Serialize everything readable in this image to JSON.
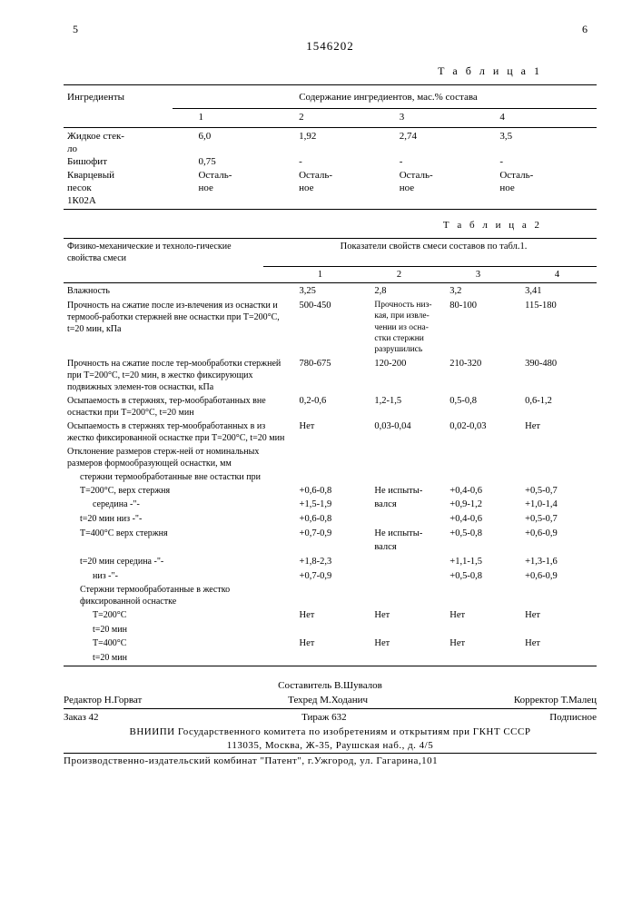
{
  "page": {
    "left_num": "5",
    "right_num": "6",
    "doc_number": "1546202"
  },
  "t1": {
    "title": "Т а б л и ц а 1",
    "head_left": "Ингредиенты",
    "head_right": "Содержание ингредиентов, мас.% состава",
    "cols": [
      "1",
      "2",
      "3",
      "4"
    ],
    "rows": [
      {
        "label_a": "Жидкое стек-",
        "label_b": "ло",
        "v": [
          "6,0",
          "1,92",
          "2,74",
          "3,5"
        ]
      },
      {
        "label_a": "Бишофит",
        "label_b": "",
        "v": [
          "0,75",
          "-",
          "-",
          "-"
        ]
      },
      {
        "label_a": "Кварцевый",
        "label_b": "песок",
        "v": [
          "Осталь-",
          "Осталь-",
          "Осталь-",
          "Осталь-"
        ],
        "v2": [
          "ное",
          "ное",
          "ное",
          "ное"
        ]
      },
      {
        "label_a": "1К02А",
        "label_b": "",
        "v": [
          "",
          "",
          "",
          ""
        ]
      }
    ]
  },
  "t2": {
    "title": "Т а б л и ц а 2",
    "head_left": "Физико-механические и техноло-гические свойства смеси",
    "head_right": "Показатели свойств смеси составов по табл.1.",
    "cols": [
      "1",
      "2",
      "3",
      "4"
    ],
    "rows": [
      {
        "label": "Влажность",
        "v": [
          "3,25",
          "2,8",
          "3,2",
          "3,41"
        ]
      },
      {
        "label": "Прочность на сжатие после из-влечения из оснастки и термооб-работки стержней вне оснастки при Т=200°С, t=20 мин, кПа",
        "v": [
          "500-450",
          "Прочность низ-кая, при извле-чении из осна-стки стержни разрушились",
          "80-100",
          "115-180"
        ],
        "note": true
      },
      {
        "label": "Прочность на сжатие после тер-мообработки стержней при Т=200°С, t=20 мин, в жестко фиксирующих подвижных элемен-тов оснастки, кПа",
        "v": [
          "780-675",
          "120-200",
          "210-320",
          "390-480"
        ]
      },
      {
        "label": "Осыпаемость в стержнях, тер-мообработанных вне оснастки при Т=200°С, t=20 мин",
        "v": [
          "0,2-0,6",
          "1,2-1,5",
          "0,5-0,8",
          "0,6-1,2"
        ]
      },
      {
        "label": "Осыпаемость в стержнях тер-мообработанных в из жестко фиксированной оснастке при Т=200°С, t=20 мин",
        "v": [
          "Нет",
          "0,03-0,04",
          "0,02-0,03",
          "Нет"
        ]
      },
      {
        "label": "Отклонение размеров стерж-ней от номинальных размеров формообразующей оснастки, мм",
        "v": [
          "",
          "",
          "",
          ""
        ]
      },
      {
        "label": "стержни термообработанные вне остастки при",
        "indent": 1,
        "v": [
          "",
          "",
          "",
          ""
        ]
      },
      {
        "label": "Т=200°С, верх стержня",
        "indent": 1,
        "v": [
          "+0,6-0,8",
          "Не испыты-",
          "+0,4-0,6",
          "+0,5-0,7"
        ]
      },
      {
        "label": "середина -\"-",
        "indent": 2,
        "v": [
          "+1,5-1,9",
          "вался",
          "+0,9-1,2",
          "+1,0-1,4"
        ]
      },
      {
        "label": "t=20 мин   низ -\"-",
        "indent": 1,
        "v": [
          "+0,6-0,8",
          "",
          "+0,4-0,6",
          "+0,5-0,7"
        ]
      },
      {
        "label": "Т=400°С   верх стержня",
        "indent": 1,
        "v": [
          "+0,7-0,9",
          "Не испыты-",
          "+0,5-0,8",
          "+0,6-0,9"
        ]
      },
      {
        "label": "",
        "indent": 2,
        "v": [
          "",
          "вался",
          "",
          ""
        ]
      },
      {
        "label": "t=20 мин   середина -\"-",
        "indent": 1,
        "v": [
          "+1,8-2,3",
          "",
          "+1,1-1,5",
          "+1,3-1,6"
        ]
      },
      {
        "label": "низ -\"-",
        "indent": 2,
        "v": [
          "+0,7-0,9",
          "",
          "+0,5-0,8",
          "+0,6-0,9"
        ]
      },
      {
        "label": "Стержни термообработанные в жестко фиксированной оснастке",
        "indent": 1,
        "v": [
          "",
          "",
          "",
          ""
        ]
      },
      {
        "label": "Т=200°С",
        "indent": 2,
        "v": [
          "Нет",
          "Нет",
          "Нет",
          "Нет"
        ]
      },
      {
        "label": "t=20 мин",
        "indent": 2,
        "v": [
          "",
          "",
          "",
          ""
        ]
      },
      {
        "label": "Т=400°С",
        "indent": 2,
        "v": [
          "Нет",
          "Нет",
          "Нет",
          "Нет"
        ]
      },
      {
        "label": "t=20 мин",
        "indent": 2,
        "v": [
          "",
          "",
          "",
          ""
        ]
      }
    ]
  },
  "footer": {
    "compiler": "Составитель В.Шувалов",
    "editor_l": "Редактор Н.Горват",
    "tech": "Техред М.Ходанич",
    "corrector": "Корректор Т.Малец",
    "order": "Заказ 42",
    "tirazh": "Тираж 632",
    "subscr": "Подписное",
    "org": "ВНИИПИ Государственного комитета по изобретениям и открытиям при ГКНТ СССР",
    "addr1": "113035, Москва, Ж-35, Раушская наб., д. 4/5",
    "addr2": "Производственно-издательский комбинат \"Патент\", г.Ужгород, ул. Гагарина,101"
  }
}
